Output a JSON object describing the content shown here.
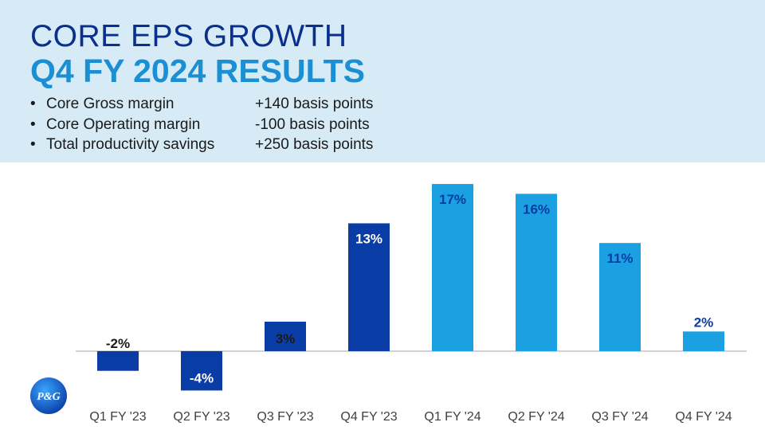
{
  "header": {
    "title": "CORE EPS GROWTH",
    "subtitle": "Q4 FY 2024 RESULTS",
    "bullets": [
      {
        "label": "Core Gross margin",
        "value": "+140 basis points"
      },
      {
        "label": "Core Operating margin",
        "value": "-100 basis points"
      },
      {
        "label": "Total productivity savings",
        "value": "+250 basis points"
      }
    ],
    "bullet_symbol": "•"
  },
  "logo": {
    "text": "P&G"
  },
  "colors": {
    "header_bg": "#d6ebf5",
    "title": "#0a2f8c",
    "subtitle": "#1b8fd3",
    "fy23_bar": "#0a3ca5",
    "fy24_bar": "#1ba1e2",
    "label_on_bar": "#0a3ca5"
  },
  "chart_data": {
    "type": "bar",
    "title": "",
    "xlabel": "",
    "ylabel": "",
    "categories": [
      "Q1 FY '23",
      "Q2 FY '23",
      "Q3 FY '23",
      "Q4 FY '23",
      "Q1 FY '24",
      "Q2 FY '24",
      "Q3 FY '24",
      "Q4 FY '24"
    ],
    "values": [
      -2,
      -4,
      3,
      13,
      17,
      16,
      11,
      2
    ],
    "data_labels": [
      "-2%",
      "-4%",
      "3%",
      "13%",
      "17%",
      "16%",
      "11%",
      "2%"
    ],
    "unit": "%",
    "ylim": [
      -4,
      17
    ],
    "grid": false,
    "legend": "none"
  }
}
